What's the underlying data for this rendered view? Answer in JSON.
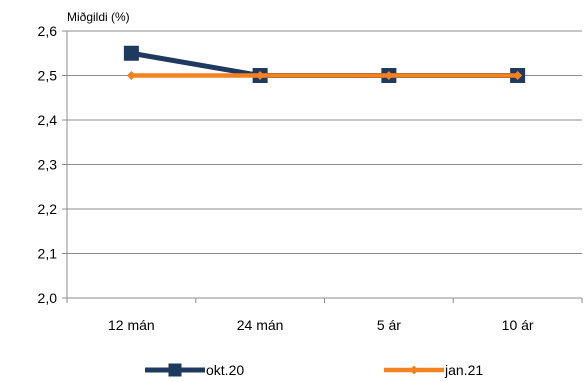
{
  "chart_data": {
    "type": "line",
    "title": "",
    "xlabel": "",
    "ylabel": "Miðgildi (%)",
    "categories": [
      "12 mán",
      "24 mán",
      "5 ár",
      "10 ár"
    ],
    "ylim": [
      2.0,
      2.6
    ],
    "yticks": [
      "2,0",
      "2,1",
      "2,2",
      "2,3",
      "2,4",
      "2,5",
      "2,6"
    ],
    "grid": true,
    "legend_position": "bottom",
    "series": [
      {
        "name": "okt.20",
        "values": [
          2.55,
          2.5,
          2.5,
          2.5
        ],
        "color": "#1f3a5f",
        "marker": "square"
      },
      {
        "name": "jan.21",
        "values": [
          2.5,
          2.5,
          2.5,
          2.5
        ],
        "color": "#f58220",
        "marker": "diamond"
      }
    ]
  }
}
